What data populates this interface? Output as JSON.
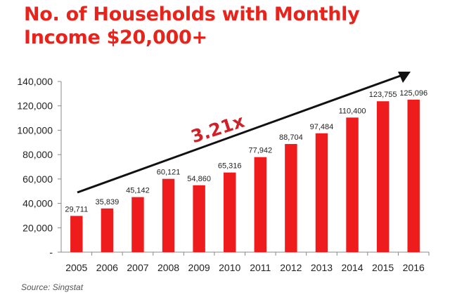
{
  "title_lines": [
    "No. of Households with Monthly",
    "Income $20,000+"
  ],
  "source": "Source: Singstat",
  "chart_data": {
    "type": "bar",
    "categories": [
      "2005",
      "2006",
      "2007",
      "2008",
      "2009",
      "2010",
      "2011",
      "2012",
      "2013",
      "2014",
      "2015",
      "2016"
    ],
    "values": [
      29711,
      35839,
      45142,
      60121,
      54860,
      65316,
      77942,
      88704,
      97484,
      110400,
      123755,
      125096
    ],
    "data_labels": [
      "29,711",
      "35,839",
      "45,142",
      "60,121",
      "54,860",
      "65,316",
      "77,942",
      "88,704",
      "97,484",
      "110,400",
      "123,755",
      "125,096"
    ],
    "y_ticks": [
      0,
      20000,
      40000,
      60000,
      80000,
      100000,
      120000,
      140000
    ],
    "y_tick_labels": [
      "-",
      "20,000",
      "40,000",
      "60,000",
      "80,000",
      "100,000",
      "120,000",
      "140,000"
    ],
    "ylim": [
      0,
      140000
    ],
    "annotation": "3.21x",
    "bar_color": "#ee1c1c",
    "annotation_color": "#d12027",
    "title_color": "#e8231b",
    "grid": false,
    "legend": "none"
  }
}
